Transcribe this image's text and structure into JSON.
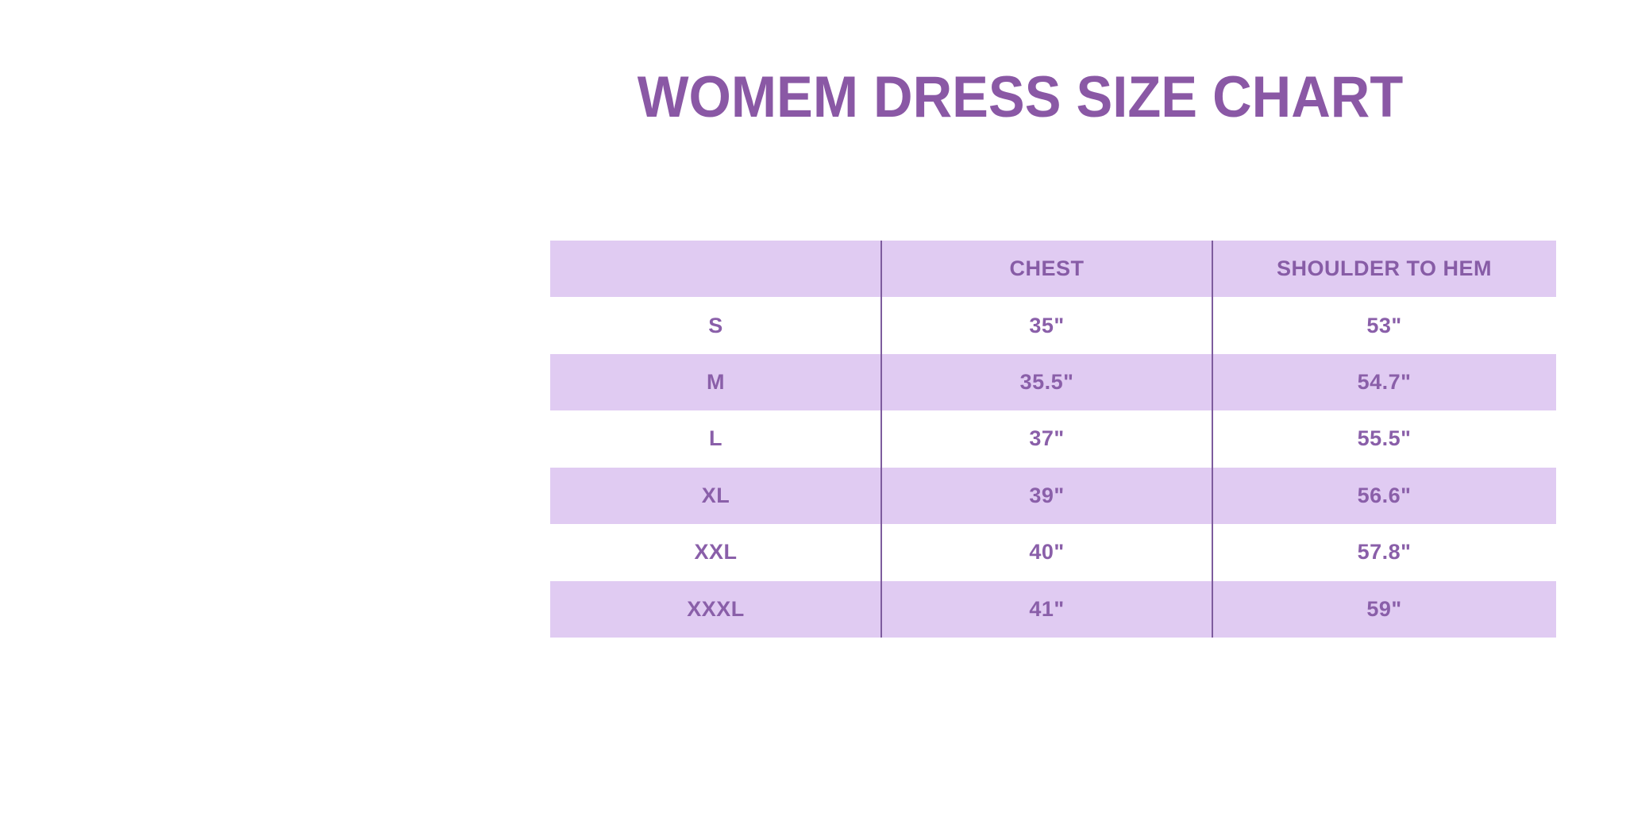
{
  "page": {
    "title": "WOMEM DRESS SIZE CHART",
    "background_color": "#ffffff"
  },
  "colors": {
    "title_text": "#8a58a5",
    "table_text": "#8a5fa9",
    "row_highlight": "#e0cbf2",
    "row_plain": "#ffffff",
    "column_divider": "#7e5c9e"
  },
  "table": {
    "columns": [
      "",
      "CHEST",
      "SHOULDER TO HEM"
    ],
    "rows": [
      {
        "size": "S",
        "chest": "35\"",
        "shoulder_to_hem": "53\""
      },
      {
        "size": "M",
        "chest": "35.5\"",
        "shoulder_to_hem": "54.7\""
      },
      {
        "size": "L",
        "chest": "37\"",
        "shoulder_to_hem": "55.5\""
      },
      {
        "size": "XL",
        "chest": "39\"",
        "shoulder_to_hem": "56.6\""
      },
      {
        "size": "XXL",
        "chest": "40\"",
        "shoulder_to_hem": "57.8\""
      },
      {
        "size": "XXXL",
        "chest": "41\"",
        "shoulder_to_hem": "59\""
      }
    ]
  }
}
